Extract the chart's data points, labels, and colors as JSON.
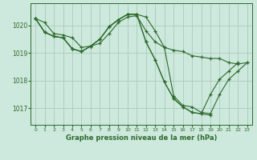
{
  "bg_color": "#cde8dc",
  "grid_color": "#aaccbb",
  "line_color": "#2d6a2d",
  "title": "Graphe pression niveau de la mer (hPa)",
  "ylim": [
    1016.4,
    1020.8
  ],
  "yticks": [
    1017,
    1018,
    1019,
    1020
  ],
  "xlim": [
    -0.5,
    23.5
  ],
  "xticks": [
    0,
    1,
    2,
    3,
    4,
    5,
    6,
    7,
    8,
    9,
    10,
    11,
    12,
    13,
    14,
    15,
    16,
    17,
    18,
    19,
    20,
    21,
    22,
    23
  ],
  "series": [
    {
      "x": [
        0,
        1,
        2,
        3,
        4,
        5,
        6,
        7,
        8,
        9,
        10,
        11,
        12,
        13,
        14,
        15,
        16,
        17,
        18,
        19,
        20,
        21,
        22,
        23
      ],
      "y": [
        1020.25,
        1020.1,
        1019.7,
        1019.65,
        1019.55,
        1019.2,
        1019.25,
        1019.35,
        1019.7,
        1020.1,
        1020.3,
        1020.35,
        1019.8,
        1019.4,
        1019.2,
        1019.1,
        1019.05,
        1018.9,
        1018.85,
        1018.8,
        1018.8,
        1018.65,
        1018.6,
        1018.65
      ]
    },
    {
      "x": [
        0,
        1,
        2,
        3,
        4,
        5,
        6,
        7,
        8,
        9,
        10,
        11,
        12,
        13,
        14,
        15,
        16,
        17,
        18,
        19,
        20,
        21,
        22,
        23
      ],
      "y": [
        1020.25,
        1019.75,
        1019.6,
        1019.55,
        1019.15,
        1019.05,
        1019.25,
        1019.5,
        1019.95,
        1020.2,
        1020.4,
        1020.4,
        1020.3,
        1019.8,
        1019.2,
        1017.45,
        1017.1,
        1017.05,
        1016.85,
        1016.8,
        1017.5,
        1018.05,
        1018.35,
        1018.65
      ]
    },
    {
      "x": [
        0,
        1,
        2,
        3,
        4,
        5,
        6,
        7,
        8,
        9,
        10,
        11,
        12,
        13,
        14,
        15,
        16,
        17,
        18,
        19,
        20,
        21,
        22
      ],
      "y": [
        1020.25,
        1019.75,
        1019.6,
        1019.55,
        1019.15,
        1019.05,
        1019.25,
        1019.5,
        1019.95,
        1020.2,
        1020.4,
        1020.4,
        1019.4,
        1018.75,
        1017.95,
        1017.35,
        1017.05,
        1016.85,
        1016.8,
        1017.5,
        1018.05,
        1018.35,
        1018.65
      ]
    },
    {
      "x": [
        0,
        1,
        2,
        3,
        4,
        5,
        6,
        7,
        8,
        9,
        10,
        11,
        12,
        13,
        14,
        15,
        16,
        17,
        18,
        19
      ],
      "y": [
        1020.25,
        1019.75,
        1019.6,
        1019.55,
        1019.15,
        1019.05,
        1019.25,
        1019.5,
        1019.95,
        1020.2,
        1020.4,
        1020.4,
        1019.4,
        1018.75,
        1017.95,
        1017.35,
        1017.05,
        1016.85,
        1016.8,
        1016.75
      ]
    }
  ]
}
